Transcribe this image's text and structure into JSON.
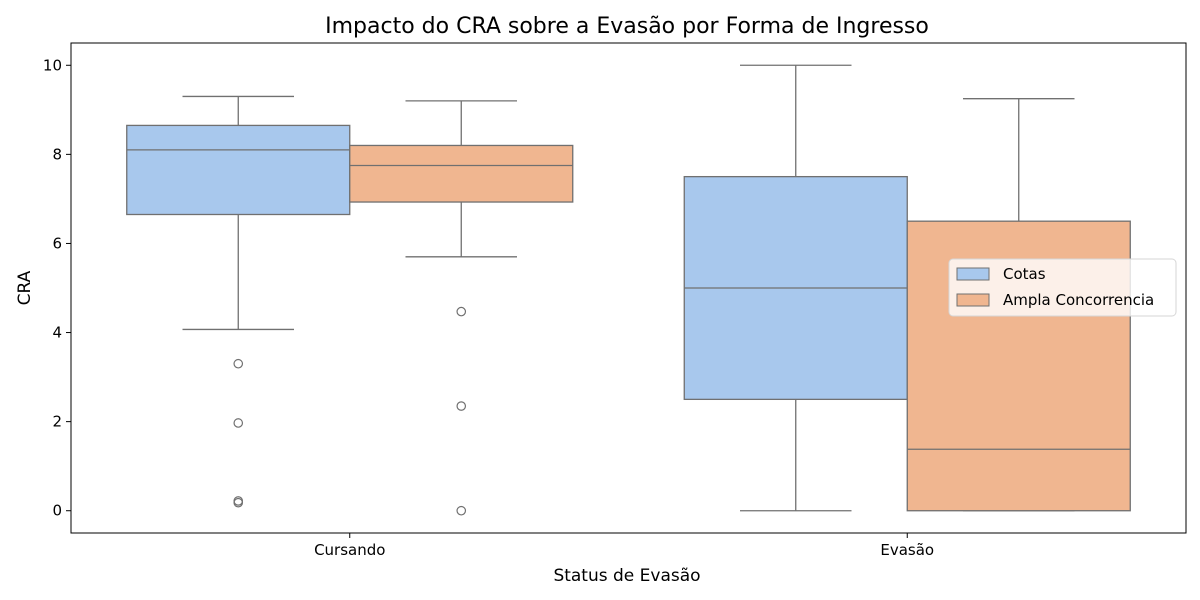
{
  "chart_data": {
    "type": "box",
    "title": "Impacto do CRA sobre a Evasão por Forma de Ingresso",
    "xlabel": "Status de Evasão",
    "ylabel": "CRA",
    "categories": [
      "Cursando",
      "Evasão"
    ],
    "ylim": [
      -0.5,
      10.5
    ],
    "yticks": [
      "0",
      "2",
      "4",
      "6",
      "8",
      "10"
    ],
    "legend_position": "center-right",
    "series": [
      {
        "name": "Cotas",
        "color": "#a8c8ed",
        "boxes": [
          {
            "whisker_low": 4.07,
            "q1": 6.65,
            "median": 8.1,
            "q3": 8.65,
            "whisker_high": 9.3,
            "outliers": [
              3.3,
              1.97,
              0.22,
              0.18
            ]
          },
          {
            "whisker_low": 0.0,
            "q1": 2.5,
            "median": 5.0,
            "q3": 7.5,
            "whisker_high": 10.0,
            "outliers": []
          }
        ]
      },
      {
        "name": "Ampla Concorrencia",
        "color": "#f0b690",
        "boxes": [
          {
            "whisker_low": 5.7,
            "q1": 6.93,
            "median": 7.75,
            "q3": 8.2,
            "whisker_high": 9.2,
            "outliers": [
              4.47,
              2.35,
              0.0
            ]
          },
          {
            "whisker_low": 0.0,
            "q1": 0.0,
            "median": 1.38,
            "q3": 6.5,
            "whisker_high": 9.25,
            "outliers": []
          }
        ]
      }
    ]
  }
}
